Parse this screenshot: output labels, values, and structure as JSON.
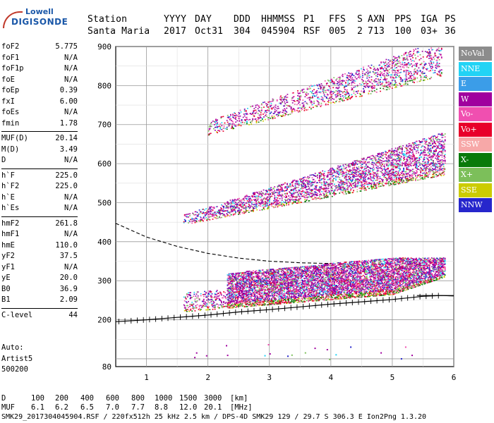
{
  "logo": {
    "line1": "Lowell",
    "line2": "DIGISONDE"
  },
  "header": {
    "row1": [
      "Station",
      "YYYY",
      "DAY",
      "DDD",
      "HHMMSS",
      "P1",
      "FFS",
      "S",
      "AXN",
      "PPS",
      "IGA",
      "PS"
    ],
    "row2": [
      "Santa Maria",
      "2017",
      "Oct31",
      "304",
      "045904",
      "RSF",
      "005",
      "2",
      "713",
      "100",
      "03+",
      "36"
    ]
  },
  "params": [
    [
      {
        "label": "foF2",
        "value": "5.775"
      },
      {
        "label": "foF1",
        "value": "N/A"
      },
      {
        "label": "foF1p",
        "value": "N/A"
      },
      {
        "label": "foE",
        "value": "N/A"
      },
      {
        "label": "foEp",
        "value": "0.39"
      },
      {
        "label": "fxI",
        "value": "6.00"
      },
      {
        "label": "foEs",
        "value": "N/A"
      },
      {
        "label": "fmin",
        "value": "1.78"
      }
    ],
    [
      {
        "label": "MUF(D)",
        "value": "20.14"
      },
      {
        "label": "M(D)",
        "value": "3.49"
      },
      {
        "label": "D",
        "value": "N/A"
      }
    ],
    [
      {
        "label": "h`F",
        "value": "225.0"
      },
      {
        "label": "h`F2",
        "value": "225.0"
      },
      {
        "label": "h`E",
        "value": "N/A"
      },
      {
        "label": "h`Es",
        "value": "N/A"
      }
    ],
    [
      {
        "label": "hmF2",
        "value": "261.8"
      },
      {
        "label": "hmF1",
        "value": "N/A"
      },
      {
        "label": "hmE",
        "value": "110.0"
      },
      {
        "label": "yF2",
        "value": "37.5"
      },
      {
        "label": "yF1",
        "value": "N/A"
      },
      {
        "label": "yE",
        "value": "20.0"
      },
      {
        "label": "B0",
        "value": "36.9"
      },
      {
        "label": "B1",
        "value": "2.09"
      }
    ],
    [
      {
        "label": "C-level",
        "value": "44"
      }
    ]
  ],
  "auto": {
    "line1": "Auto:",
    "line2": "Artist5",
    "line3": "500200"
  },
  "legend": [
    {
      "label": "NoVal",
      "color": "#8c8c8c"
    },
    {
      "label": "NNE",
      "color": "#22d3f5"
    },
    {
      "label": "E",
      "color": "#3b9de8"
    },
    {
      "label": "W",
      "color": "#a0009e"
    },
    {
      "label": "Vo-",
      "color": "#f04fb0"
    },
    {
      "label": "Vo+",
      "color": "#e8002a"
    },
    {
      "label": "SSW",
      "color": "#f7a8a8"
    },
    {
      "label": "X-",
      "color": "#0a7a0a"
    },
    {
      "label": "X+",
      "color": "#7cbf5a"
    },
    {
      "label": "SSE",
      "color": "#cccc00"
    },
    {
      "label": "NNW",
      "color": "#2626cc"
    }
  ],
  "footer": {
    "d_label": "D",
    "d_values": [
      "100",
      "200",
      "400",
      "600",
      "800",
      "1000",
      "1500",
      "3000"
    ],
    "d_unit": "[km]",
    "muf_label": "MUF",
    "muf_values": [
      "6.1",
      "6.2",
      "6.5",
      "7.0",
      "7.7",
      "8.8",
      "12.0",
      "20.1"
    ],
    "muf_unit": "[MHz]",
    "info": "SMK29_2017304045904.RSF / 220fx512h 25 kHz 2.5 km / DPS-4D SMK29 129 / 29.7 S 306.3 E Ion2Png 1.3.20"
  },
  "chart_data": {
    "type": "scatter",
    "xlim": [
      0.5,
      6.0
    ],
    "ylim": [
      80,
      900
    ],
    "x_ticks": [
      "1",
      "2",
      "3",
      "4",
      "5",
      "6"
    ],
    "y_ticks": [
      "200",
      "300",
      "400",
      "500",
      "600",
      "700",
      "800",
      "900"
    ],
    "y_tick_bottom": "80",
    "grid": true,
    "traces": [
      {
        "name": "F-layer ordinary trace",
        "x_range": [
          1.55,
          5.8
        ],
        "y_range": [
          222,
          360
        ]
      },
      {
        "name": "second-hop echoes",
        "x_range": [
          1.6,
          5.85
        ],
        "y_range": [
          440,
          690
        ]
      },
      {
        "name": "third-hop echoes",
        "x_range": [
          2.0,
          5.75
        ],
        "y_range": [
          670,
          900
        ]
      }
    ],
    "profile_curve": {
      "x": [
        0.5,
        1.0,
        1.5,
        2.0,
        2.5,
        3.0,
        3.5,
        4.0,
        4.5,
        5.0,
        5.5,
        5.8,
        6.0
      ],
      "y": [
        195,
        200,
        206,
        212,
        220,
        226,
        233,
        240,
        246,
        252,
        260,
        262,
        261
      ]
    },
    "topside_curve": {
      "x": [
        0.5,
        1.0,
        1.5,
        2.0,
        2.5,
        3.0,
        3.5,
        4.0
      ],
      "y": [
        447,
        412,
        388,
        370,
        358,
        350,
        346,
        344
      ]
    }
  }
}
